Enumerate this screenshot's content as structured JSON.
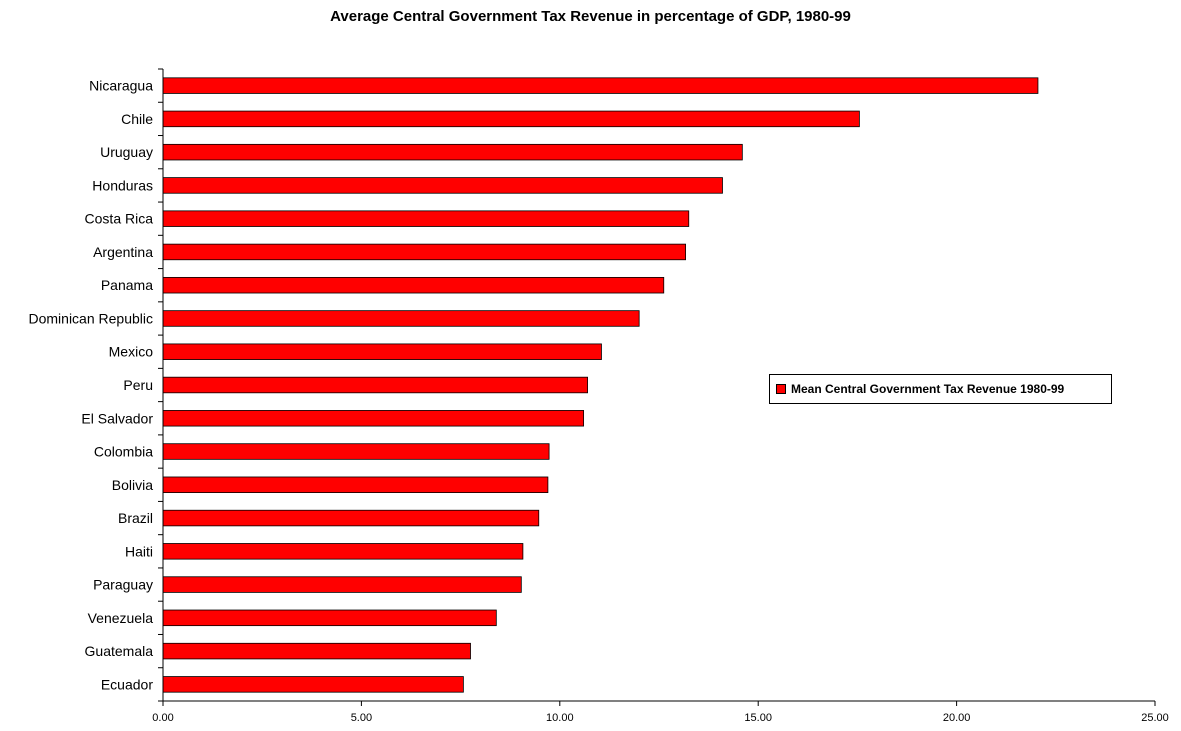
{
  "chart_data": {
    "type": "bar",
    "orientation": "horizontal",
    "title": "Average Central Government Tax Revenue in percentage of GDP, 1980-99",
    "xlabel": "",
    "ylabel": "",
    "xlim": [
      0,
      25
    ],
    "x_ticks": [
      "0.00",
      "5.00",
      "10.00",
      "15.00",
      "20.00",
      "25.00"
    ],
    "grid": false,
    "legend_position": "right",
    "bar_color": "#ff0000",
    "categories": [
      "Nicaragua",
      "Chile",
      "Uruguay",
      "Honduras",
      "Costa Rica",
      "Argentina",
      "Panama",
      "Dominican Republic",
      "Mexico",
      "Peru",
      "El Salvador",
      "Colombia",
      "Bolivia",
      "Brazil",
      "Haiti",
      "Paraguay",
      "Venezuela",
      "Guatemala",
      "Ecuador"
    ],
    "series": [
      {
        "name": "Mean Central Government Tax Revenue 1980-99",
        "values": [
          22.05,
          17.55,
          14.6,
          14.1,
          13.25,
          13.17,
          12.62,
          12.0,
          11.05,
          10.7,
          10.6,
          9.73,
          9.7,
          9.47,
          9.07,
          9.03,
          8.4,
          7.75,
          7.57
        ]
      }
    ]
  }
}
